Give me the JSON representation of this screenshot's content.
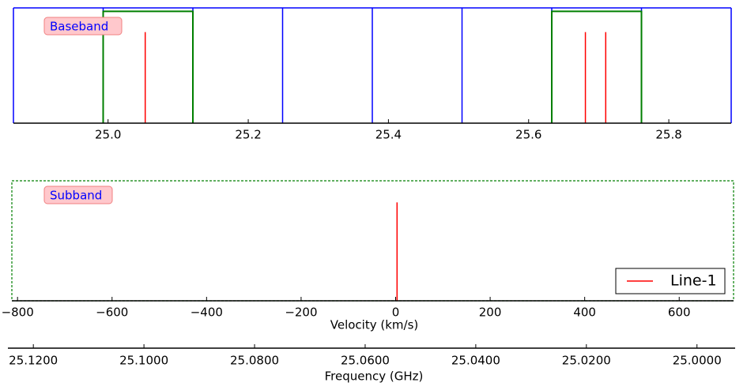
{
  "chart_data": [
    {
      "type": "spw",
      "label": "Baseband",
      "xlim": [
        24.865,
        25.889
      ],
      "ylim": [
        0,
        1
      ],
      "xticks": [
        {
          "value": 25.0,
          "label": "25.0"
        },
        25.2,
        25.4,
        25.6,
        25.8
      ],
      "basebands": {
        "color": "#0000ff",
        "edges": [
          24.865,
          24.993,
          25.121,
          25.249,
          25.377,
          25.505,
          25.633,
          25.761,
          25.889
        ]
      },
      "subbands": {
        "color": "#007f00",
        "starts": [
          24.993,
          25.633
        ],
        "ends": [
          25.121,
          25.761
        ],
        "height": 0.97
      },
      "lines": {
        "color": "#ff0000",
        "x": [
          25.053,
          25.681,
          25.71
        ],
        "values": [
          0.79,
          0.79,
          0.79
        ]
      }
    },
    {
      "type": "line-profile",
      "label": "Subband",
      "xlabel": "Velocity (km/s)",
      "xlim": [
        -812,
        715
      ],
      "ylim": [
        0,
        1
      ],
      "xticks": [
        {
          "value": -800,
          "label": "−800"
        },
        {
          "value": -600,
          "label": "−600"
        },
        {
          "value": -400,
          "label": "−400"
        },
        {
          "value": -200,
          "label": "−200"
        },
        0,
        200,
        400,
        600
      ],
      "x2label": "Frequency (GHz)",
      "x2lim": [
        25.1246,
        24.9931
      ],
      "x2ticks": [
        {
          "value": 25.12,
          "label": "25.1200"
        },
        {
          "value": 25.1,
          "label": "25.1000"
        },
        {
          "value": 25.08,
          "label": "25.0800"
        },
        {
          "value": 25.06,
          "label": "25.0600"
        },
        {
          "value": 25.04,
          "label": "25.0400"
        },
        {
          "value": 25.02,
          "label": "25.0200"
        },
        {
          "value": 25.0,
          "label": "25.0000"
        }
      ],
      "window_color": "#007f00",
      "legend": "lower right",
      "series": [
        {
          "name": "Line-1",
          "color": "#ff0000",
          "x": [
            3
          ],
          "values": [
            0.82
          ]
        }
      ]
    }
  ]
}
